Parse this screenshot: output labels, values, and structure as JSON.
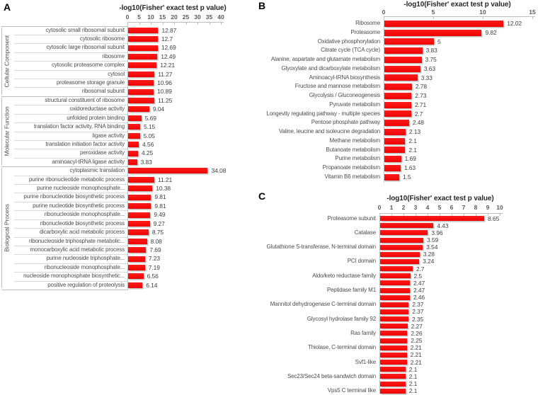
{
  "figure": {
    "background": "#ffffff",
    "panel_letters": [
      "A",
      "B",
      "C"
    ]
  },
  "colors": {
    "bar_fill": "#f70505",
    "bar_shadow": "#9e9e9e",
    "axis_line": "#bfbfbf",
    "row_separator": "#d9d9d9",
    "title_text": "#262626",
    "label_text": "#4d4d4d"
  },
  "chart_data": [
    {
      "type": "bar",
      "orientation": "horizontal",
      "panel_label": "A",
      "title": "-log10(Fisher' exact test p value)",
      "xlim": [
        0,
        40
      ],
      "xticks": [
        0,
        5,
        10,
        15,
        20,
        25,
        30,
        35,
        40
      ],
      "grid": "off",
      "legend": "none",
      "groups": [
        {
          "name": "Cellular Component",
          "categories": [
            "cytosolic small ribosomal subunit",
            "cytosolic ribosome",
            "cytosolic large ribosomal subunit",
            "ribosome",
            "cytosolic proteasome complex",
            "cytosol",
            "proteasome storage granule",
            "ribosomal subunit"
          ],
          "values": [
            12.87,
            12.7,
            12.69,
            12.49,
            12.21,
            11.27,
            10.96,
            10.89
          ]
        },
        {
          "name": "Molecular Function",
          "categories": [
            "structural constituent of ribosome",
            "oxidoreductase activity",
            "unfolded protein binding",
            "translation factor activity, RNA binding",
            "ligase activity",
            "translation initiation factor activity",
            "peroxidase activity",
            "aminoacyl-tRNA ligase activity"
          ],
          "values": [
            11.25,
            9.04,
            5.69,
            5.15,
            5.05,
            4.56,
            4.25,
            3.83
          ]
        },
        {
          "name": "Biological Process",
          "categories": [
            "cytoplasmic translation",
            "purine ribonucleotide metabolic process",
            "purine nucleoside monophosphate...",
            "purine ribonucleotide biosynthetic process",
            "purine nucleotide biosynthetic process",
            "ribonucleoside monophosphate...",
            "ribonucleotide biosynthetic process",
            "dicarboxylic acid metabolic process",
            "ribonucleoside triphosphate metabolic...",
            "monocarboxylic acid metabolic process",
            "purine nucleoside triphosphate...",
            "ribonucleoside monophosphate...",
            "nucleoside monophosphate biosynthetic...",
            "positive regulation of proteolysis"
          ],
          "values": [
            34.08,
            11.21,
            10.38,
            9.81,
            9.81,
            9.49,
            9.27,
            8.75,
            8.08,
            7.69,
            7.23,
            7.19,
            6.56,
            6.14
          ]
        }
      ]
    },
    {
      "type": "bar",
      "orientation": "horizontal",
      "panel_label": "B",
      "title": "-log10(Fisher' exact test p value)",
      "xlim": [
        0,
        15
      ],
      "xticks": [
        0,
        5,
        10,
        15
      ],
      "grid": "off",
      "legend": "none",
      "categories": [
        "Ribosome",
        "Proteasome",
        "Oxidative phosphorylation",
        "Citrate cycle (TCA cycle)",
        "Alanine, aspartate and glutamate metabolism",
        "Glyoxylate and dicarboxylate metabolism",
        "Aminoacyl-tRNA biosynthesis",
        "Fructose and mannose metabolism",
        "Glycolysis / Gluconeogenesis",
        "Pyruvate metabolism",
        "Longevity regulating pathway - multiple species",
        "Pentose phosphate pathway",
        "Valine, leucine and isoleucine degradation",
        "Methane metabolism",
        "Butanoate metabolism",
        "Purine metabolism",
        "Propanoate metabolism",
        "Vitamin B6 metabolism"
      ],
      "values": [
        12.02,
        9.82,
        5,
        3.83,
        3.75,
        3.63,
        3.33,
        2.78,
        2.73,
        2.71,
        2.7,
        2.48,
        2.13,
        2.1,
        2.1,
        1.69,
        1.63,
        1.5
      ]
    },
    {
      "type": "bar",
      "orientation": "horizontal",
      "panel_label": "C",
      "title": "-log10(Fisher' exact test p value)",
      "xlim": [
        0,
        10
      ],
      "xticks": [
        0,
        1,
        2,
        3,
        4,
        5,
        6,
        7,
        8,
        9,
        10
      ],
      "grid": "off",
      "legend": "none",
      "categories": [
        "Proteasome subunit",
        "",
        "Catalase",
        "",
        "Glutathione S-transferase, N-terminal domain",
        "",
        "PCI domain",
        "",
        "Aldo/keto reductase family",
        "",
        "Peptidase family M1",
        "",
        "Mannitol dehydrogenase C-terminal domain",
        "",
        "Glycosyl hydrolase family 92",
        "",
        "Ras family",
        "",
        "Thiolase, C-terminal domain",
        "",
        "Svf1-like",
        "",
        "Sec23/Sec24 beta-sandwich domain",
        "",
        "Vps5 C terminal like"
      ],
      "values": [
        8.65,
        4.43,
        3.96,
        3.59,
        3.54,
        3.28,
        3.24,
        2.7,
        2.5,
        2.47,
        2.47,
        2.46,
        2.37,
        2.37,
        2.35,
        2.27,
        2.26,
        2.25,
        2.21,
        2.21,
        2.21,
        2.1,
        2.1,
        2.1,
        2.1
      ]
    }
  ]
}
